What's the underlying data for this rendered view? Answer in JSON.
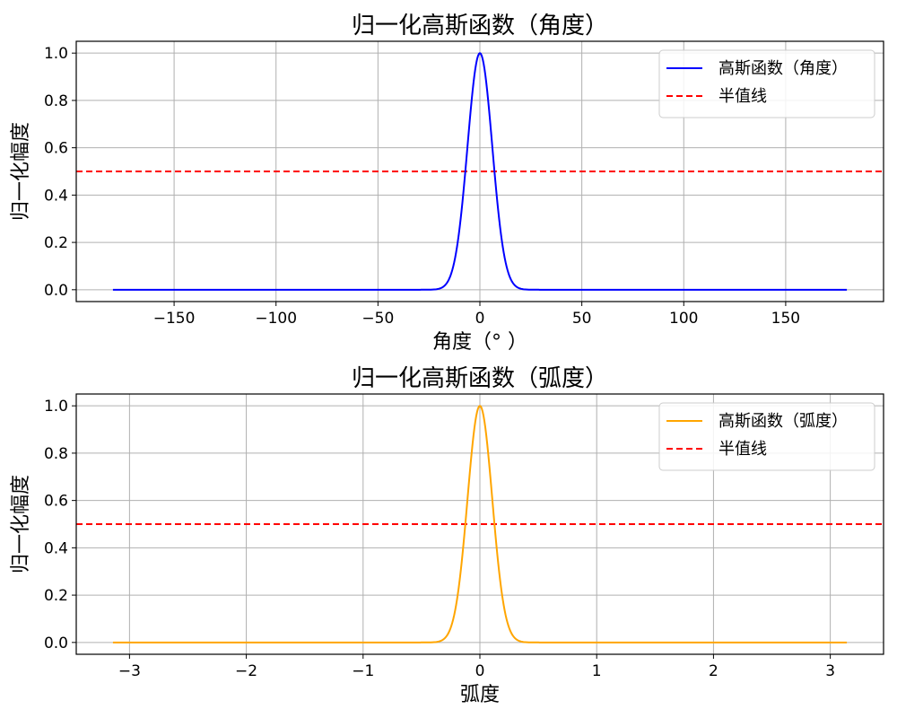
{
  "colors": {
    "background": "#ffffff",
    "grid": "#b0b0b0",
    "axis": "#000000",
    "half_line": "#ff0000",
    "series_deg": "#0000ff",
    "series_rad": "#ffa500",
    "legend_border": "#cccccc"
  },
  "chart_data": [
    {
      "type": "line",
      "title": "归一化高斯函数（角度）",
      "xlabel": "角度（° ）",
      "ylabel": "归一化幅度",
      "xlim": [
        -198,
        198
      ],
      "ylim": [
        -0.05,
        1.05
      ],
      "xticks": [
        -150,
        -100,
        -50,
        0,
        50,
        100,
        150
      ],
      "xtick_labels": [
        "−150",
        "−100",
        "−50",
        "0",
        "50",
        "100",
        "150"
      ],
      "yticks": [
        0.0,
        0.2,
        0.4,
        0.6,
        0.8,
        1.0
      ],
      "ytick_labels": [
        "0.0",
        "0.2",
        "0.4",
        "0.6",
        "0.8",
        "1.0"
      ],
      "grid": true,
      "legend_position": "upper right",
      "series": [
        {
          "name": "高斯函数（角度）",
          "color": "#0000ff",
          "style": "solid",
          "function": "gaussian",
          "x_range": [
            -180,
            180
          ],
          "mu": 0,
          "fwhm": 14.3
        }
      ],
      "hlines": [
        {
          "name": "半值线",
          "y": 0.5,
          "color": "#ff0000",
          "style": "dashed"
        }
      ]
    },
    {
      "type": "line",
      "title": "归一化高斯函数（弧度）",
      "xlabel": "弧度",
      "ylabel": "归一化幅度",
      "xlim": [
        -3.456,
        3.456
      ],
      "ylim": [
        -0.05,
        1.05
      ],
      "xticks": [
        -3,
        -2,
        -1,
        0,
        1,
        2,
        3
      ],
      "xtick_labels": [
        "−3",
        "−2",
        "−1",
        "0",
        "1",
        "2",
        "3"
      ],
      "yticks": [
        0.0,
        0.2,
        0.4,
        0.6,
        0.8,
        1.0
      ],
      "ytick_labels": [
        "0.0",
        "0.2",
        "0.4",
        "0.6",
        "0.8",
        "1.0"
      ],
      "grid": true,
      "legend_position": "upper right",
      "series": [
        {
          "name": "高斯函数（弧度）",
          "color": "#ffa500",
          "style": "solid",
          "function": "gaussian",
          "x_range": [
            -3.14159,
            3.14159
          ],
          "mu": 0,
          "fwhm": 0.2496
        }
      ],
      "hlines": [
        {
          "name": "半值线",
          "y": 0.5,
          "color": "#ff0000",
          "style": "dashed"
        }
      ]
    }
  ]
}
